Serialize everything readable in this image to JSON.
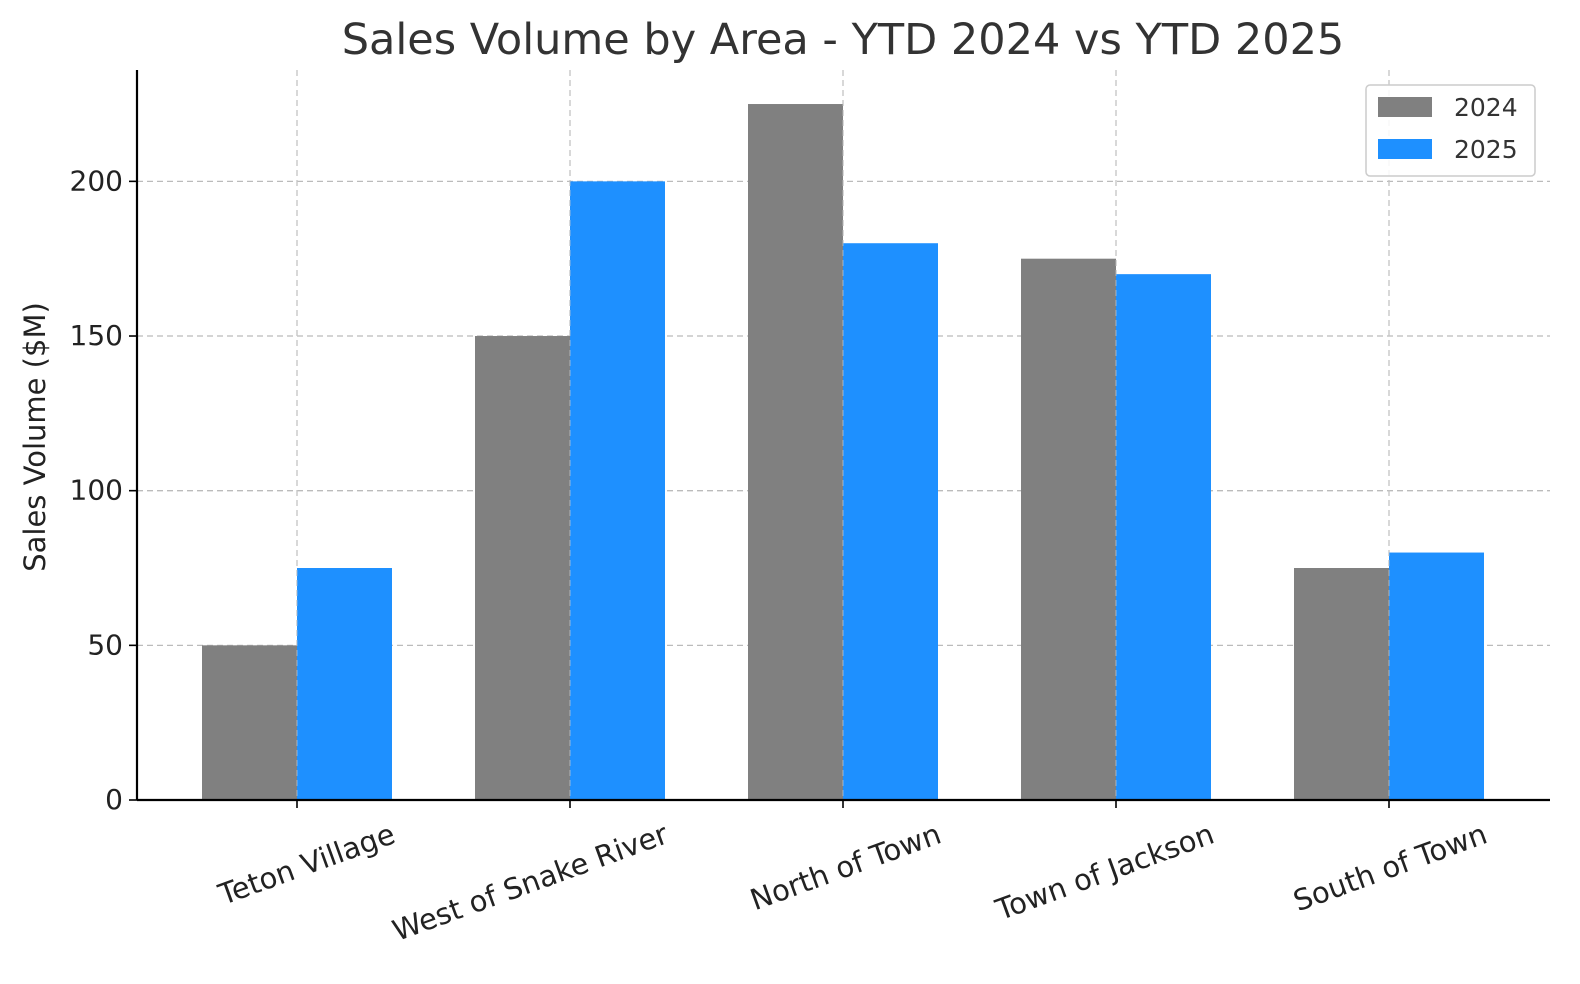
{
  "chart_data": {
    "type": "bar",
    "title": "Sales Volume by Area - YTD 2024 vs YTD 2025",
    "xlabel": "",
    "ylabel": "Sales Volume ($M)",
    "categories": [
      "Teton Village",
      "West of Snake River",
      "North of Town",
      "Town of Jackson",
      "South of Town"
    ],
    "series": [
      {
        "name": "2024",
        "color": "#808080",
        "values": [
          50,
          150,
          225,
          175,
          75
        ]
      },
      {
        "name": "2025",
        "color": "#1e90ff",
        "values": [
          75,
          200,
          180,
          170,
          80
        ]
      }
    ],
    "ylim": [
      0,
      236
    ],
    "yticks": [
      0,
      50,
      100,
      150,
      200
    ],
    "grid": true,
    "legend_position": "top-right"
  }
}
